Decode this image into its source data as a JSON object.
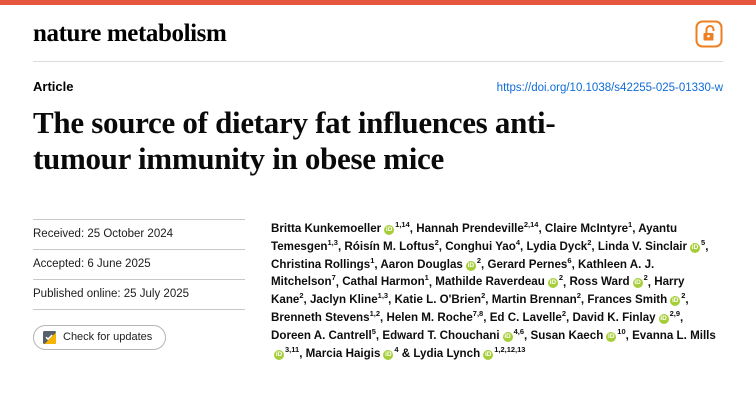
{
  "header": {
    "journal": "nature metabolism"
  },
  "article": {
    "label": "Article",
    "doi": "https://doi.org/10.1038/s42255-025-01330-w",
    "title": "The source of dietary fat influences anti-tumour immunity in obese mice"
  },
  "dates": {
    "received": "Received: 25 October 2024",
    "accepted": "Accepted: 6 June 2025",
    "published": "Published online: 25 July 2025"
  },
  "check_for_updates_label": "Check for updates",
  "colors": {
    "topbar": "#e4573c",
    "open_access": "#ee7f22",
    "link": "#0f6bd7",
    "orcid": "#a6ce39"
  },
  "authors_meta": {
    "separator": ", ",
    "last_separator": " & ",
    "orcid_glyph": "iD"
  },
  "authors": [
    {
      "name": "Britta Kunkemoeller",
      "orcid": true,
      "sup": "1,14"
    },
    {
      "name": "Hannah Prendeville",
      "orcid": false,
      "sup": "2,14"
    },
    {
      "name": "Claire McIntyre",
      "orcid": false,
      "sup": "1"
    },
    {
      "name": "Ayantu Temesgen",
      "orcid": false,
      "sup": "1,3"
    },
    {
      "name": "Róisín M. Loftus",
      "orcid": false,
      "sup": "2"
    },
    {
      "name": "Conghui Yao",
      "orcid": false,
      "sup": "4"
    },
    {
      "name": "Lydia Dyck",
      "orcid": false,
      "sup": "2"
    },
    {
      "name": "Linda V. Sinclair",
      "orcid": true,
      "sup": "5"
    },
    {
      "name": "Christina Rollings",
      "orcid": false,
      "sup": "1"
    },
    {
      "name": "Aaron Douglas",
      "orcid": true,
      "sup": "2"
    },
    {
      "name": "Gerard Pernes",
      "orcid": false,
      "sup": "6"
    },
    {
      "name": "Kathleen A. J. Mitchelson",
      "orcid": false,
      "sup": "7"
    },
    {
      "name": "Cathal Harmon",
      "orcid": false,
      "sup": "1"
    },
    {
      "name": "Mathilde Raverdeau",
      "orcid": true,
      "sup": "2"
    },
    {
      "name": "Ross Ward",
      "orcid": true,
      "sup": "2"
    },
    {
      "name": "Harry Kane",
      "orcid": false,
      "sup": "2"
    },
    {
      "name": "Jaclyn Kline",
      "orcid": false,
      "sup": "1,3"
    },
    {
      "name": "Katie L. O'Brien",
      "orcid": false,
      "sup": "2"
    },
    {
      "name": "Martin Brennan",
      "orcid": false,
      "sup": "2"
    },
    {
      "name": "Frances Smith",
      "orcid": true,
      "sup": "2"
    },
    {
      "name": "Brenneth Stevens",
      "orcid": false,
      "sup": "1,2"
    },
    {
      "name": "Helen M. Roche",
      "orcid": false,
      "sup": "7,8"
    },
    {
      "name": "Ed C. Lavelle",
      "orcid": false,
      "sup": "2"
    },
    {
      "name": "David K. Finlay",
      "orcid": true,
      "sup": "2,9"
    },
    {
      "name": "Doreen A. Cantrell",
      "orcid": false,
      "sup": "5"
    },
    {
      "name": "Edward T. Chouchani",
      "orcid": true,
      "sup": "4,6"
    },
    {
      "name": "Susan Kaech",
      "orcid": true,
      "sup": "10"
    },
    {
      "name": "Evanna L. Mills",
      "orcid": true,
      "sup": "3,11"
    },
    {
      "name": "Marcia Haigis",
      "orcid": true,
      "sup": "4"
    },
    {
      "name": "Lydia Lynch",
      "orcid": true,
      "sup": "1,2,12,13"
    }
  ]
}
